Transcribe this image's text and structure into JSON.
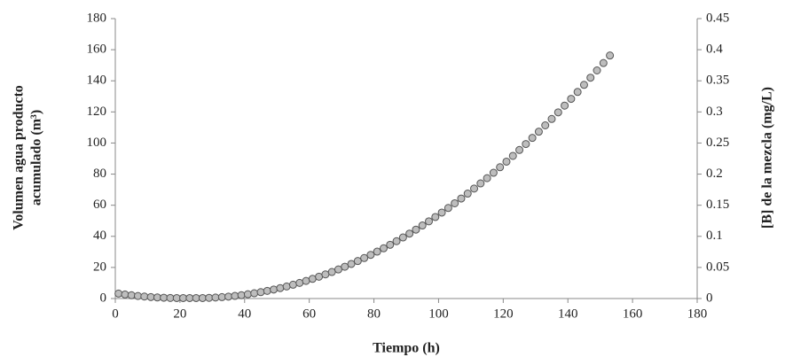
{
  "chart_data": {
    "type": "scatter",
    "x_label": "Tiempo (h)",
    "y_label": [
      "Volumen agua producto",
      "acumulado (m³)"
    ],
    "y2_label": "[B] de la mezcla (mg/L)",
    "xlim": [
      0,
      180
    ],
    "xticks": [
      0,
      20,
      40,
      60,
      80,
      100,
      120,
      140,
      160,
      180
    ],
    "ylim": [
      0,
      180
    ],
    "yticks": [
      0,
      20,
      40,
      60,
      80,
      100,
      120,
      140,
      160,
      180
    ],
    "y2lim": [
      0,
      0.45
    ],
    "y2ticks": [
      0,
      0.05,
      0.1,
      0.15,
      0.2,
      0.25,
      0.3,
      0.35,
      0.4,
      0.45
    ],
    "grid": false,
    "x": [
      1,
      3,
      5,
      7,
      9,
      11,
      13,
      15,
      17,
      19,
      21,
      23,
      25,
      27,
      29,
      31,
      33,
      35,
      37,
      39,
      41,
      43,
      45,
      47,
      49,
      51,
      53,
      55,
      57,
      59,
      61,
      63,
      65,
      67,
      69,
      71,
      73,
      75,
      77,
      79,
      81,
      83,
      85,
      87,
      89,
      91,
      93,
      95,
      97,
      99,
      101,
      103,
      105,
      107,
      109,
      111,
      113,
      115,
      117,
      119,
      121,
      123,
      125,
      127,
      129,
      131,
      133,
      135,
      137,
      139,
      141,
      143,
      145,
      147,
      149,
      151,
      153
    ],
    "series": [
      {
        "color": "#bdbdbd",
        "axis": "y2",
        "values": [
          0.008,
          0.0065,
          0.0053,
          0.0041,
          0.0032,
          0.0024,
          0.0017,
          0.0013,
          0.0009,
          0.0008,
          0.0008,
          0.0008,
          0.0008,
          0.0008,
          0.0011,
          0.0016,
          0.0023,
          0.0031,
          0.0042,
          0.0054,
          0.0069,
          0.0085,
          0.0103,
          0.0123,
          0.0145,
          0.0168,
          0.0194,
          0.0222,
          0.0251,
          0.0283,
          0.0316,
          0.0351,
          0.0388,
          0.0427,
          0.0468,
          0.0511,
          0.0556,
          0.0603,
          0.0651,
          0.0702,
          0.0754,
          0.0808,
          0.0864,
          0.0922,
          0.0982,
          0.1044,
          0.1108,
          0.1174,
          0.1241,
          0.1311,
          0.1382,
          0.1456,
          0.1531,
          0.1608,
          0.1687,
          0.1768,
          0.1851,
          0.1935,
          0.2022,
          0.2111,
          0.2201,
          0.2293,
          0.2388,
          0.2484,
          0.2582,
          0.2682,
          0.2784,
          0.2887,
          0.2993,
          0.3101,
          0.321,
          0.3321,
          0.3435,
          0.355,
          0.3667,
          0.3786,
          0.3907
        ]
      }
    ]
  }
}
